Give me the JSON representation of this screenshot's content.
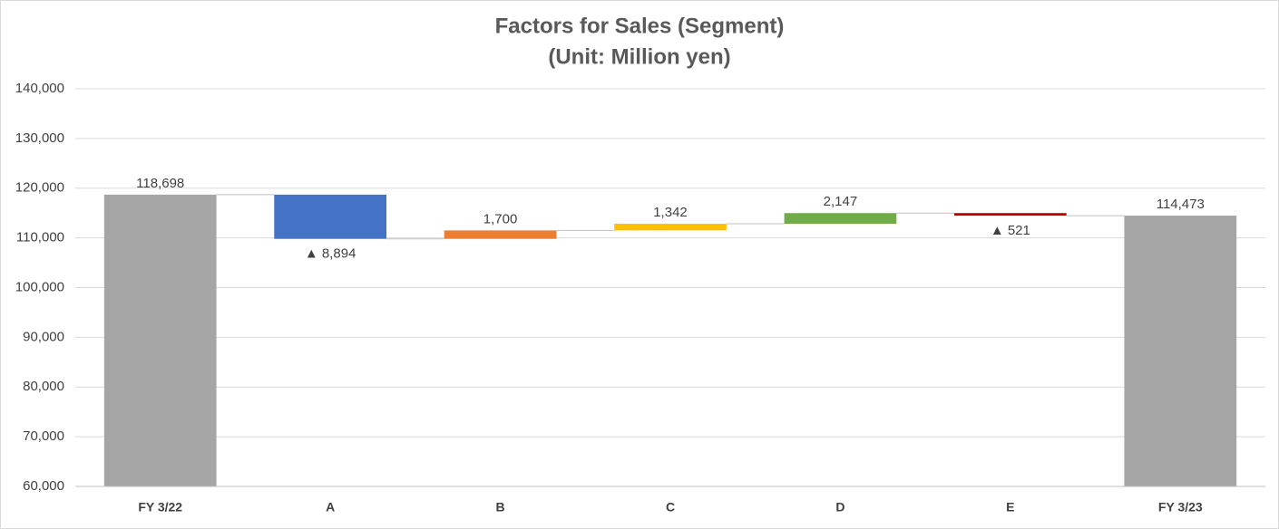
{
  "chart_data": {
    "type": "waterfall",
    "title": "Factors for Sales (Segment)",
    "subtitle": "(Unit: Million yen)",
    "categories": [
      "FY 3/22",
      "A",
      "B",
      "C",
      "D",
      "E",
      "FY 3/23"
    ],
    "values": [
      118698,
      -8894,
      1700,
      1342,
      2147,
      -521,
      114473
    ],
    "value_labels": [
      "118,698",
      "▲ 8,894",
      "1,700",
      "1,342",
      "2,147",
      "▲ 521",
      "114,473"
    ],
    "colors": [
      "#a5a5a5",
      "#4472c4",
      "#ed7d31",
      "#ffc000",
      "#70ad47",
      "#c00000",
      "#a5a5a5"
    ],
    "ylim": [
      60000,
      140000
    ],
    "yticks": [
      {
        "value": 60000,
        "label": "60,000"
      },
      {
        "value": 70000,
        "label": "70,000"
      },
      {
        "value": 80000,
        "label": "80,000"
      },
      {
        "value": 90000,
        "label": "90,000"
      },
      {
        "value": 100000,
        "label": "100,000"
      },
      {
        "value": 110000,
        "label": "110,000"
      },
      {
        "value": 120000,
        "label": "120,000"
      },
      {
        "value": 130000,
        "label": "130,000"
      },
      {
        "value": 140000,
        "label": "140,000"
      }
    ],
    "grid": true
  }
}
